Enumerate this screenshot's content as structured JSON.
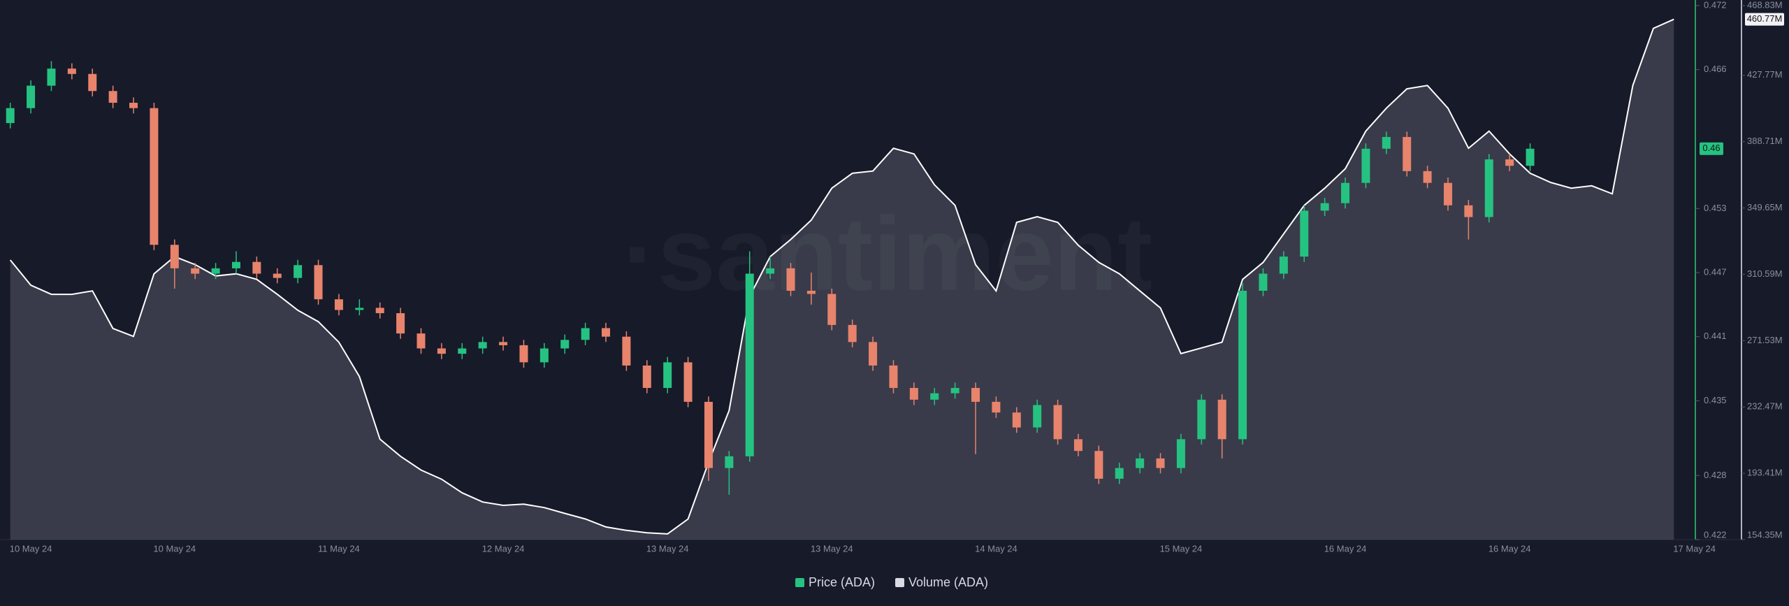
{
  "chart_data": {
    "type": "candlestick",
    "watermark": "·santiment",
    "categories": [
      null,
      "10 May 24",
      null,
      null,
      null,
      null,
      null,
      null,
      "10 May 24",
      null,
      null,
      null,
      null,
      null,
      null,
      null,
      "11 May 24",
      null,
      null,
      null,
      null,
      null,
      null,
      null,
      "12 May 24",
      null,
      null,
      null,
      null,
      null,
      null,
      null,
      "13 May 24",
      null,
      null,
      null,
      null,
      null,
      null,
      null,
      "13 May 24",
      null,
      null,
      null,
      null,
      null,
      null,
      null,
      "14 May 24",
      null,
      null,
      null,
      null,
      null,
      null,
      null,
      null,
      "15 May 24",
      null,
      null,
      null,
      null,
      null,
      null,
      null,
      "16 May 24",
      null,
      null,
      null,
      null,
      null,
      null,
      null,
      "16 May 24",
      null,
      null,
      null,
      null,
      null,
      null,
      null,
      null,
      "17 May 24"
    ],
    "series": [
      {
        "name": "Price (ADA)",
        "type": "candlestick",
        "color": "#26c281",
        "color_down": "#e8836c",
        "open": [
          0.461,
          0.4624,
          0.4645,
          0.4661,
          0.4656,
          0.464,
          0.4629,
          0.4624,
          0.4496,
          0.4474,
          0.4469,
          0.4474,
          0.448,
          0.4469,
          0.4465,
          0.4477,
          0.4445,
          0.4435,
          0.4437,
          0.4432,
          0.4413,
          0.4399,
          0.4394,
          0.4399,
          0.4405,
          0.4402,
          0.4386,
          0.4399,
          0.4407,
          0.4418,
          0.441,
          0.4383,
          0.4362,
          0.4386,
          0.4349,
          0.4287,
          0.4298,
          0.4469,
          0.4474,
          0.4453,
          0.445,
          0.4421,
          0.4405,
          0.4383,
          0.4362,
          0.4351,
          0.4357,
          0.4362,
          0.4349,
          0.4339,
          0.4325,
          0.4346,
          0.4314,
          0.4303,
          0.4277,
          0.4287,
          0.4296,
          0.4287,
          0.4314,
          0.4351,
          0.4314,
          0.4453,
          0.4469,
          0.4485,
          0.4528,
          0.4535,
          0.4554,
          0.4586,
          0.4597,
          0.4565,
          0.4554,
          0.4533,
          0.4522,
          0.4576,
          0.457,
          null,
          null,
          null,
          null,
          null,
          null,
          null,
          null
        ],
        "high": [
          0.4629,
          0.465,
          0.4668,
          0.4666,
          0.4661,
          0.4645,
          0.4634,
          0.4629,
          0.4501,
          0.4479,
          0.4479,
          0.449,
          0.4485,
          0.4474,
          0.4482,
          0.4482,
          0.445,
          0.4445,
          0.4442,
          0.4437,
          0.4418,
          0.4404,
          0.4404,
          0.441,
          0.441,
          0.4407,
          0.4404,
          0.4412,
          0.4423,
          0.4423,
          0.4415,
          0.4388,
          0.4391,
          0.4391,
          0.4354,
          0.4303,
          0.449,
          0.4485,
          0.4479,
          0.447,
          0.4455,
          0.4426,
          0.441,
          0.4388,
          0.4367,
          0.4362,
          0.4367,
          0.4367,
          0.4354,
          0.4344,
          0.4351,
          0.4351,
          0.4319,
          0.4308,
          0.4292,
          0.4301,
          0.4301,
          0.4319,
          0.4356,
          0.4356,
          0.446,
          0.4474,
          0.449,
          0.4533,
          0.454,
          0.4559,
          0.4591,
          0.4602,
          0.4602,
          0.457,
          0.4559,
          0.4538,
          0.4581,
          0.4581,
          0.4591,
          null,
          null,
          null,
          null,
          null,
          null,
          null,
          null
        ],
        "low": [
          0.4605,
          0.4619,
          0.464,
          0.4651,
          0.4635,
          0.4624,
          0.4619,
          0.4491,
          0.4455,
          0.4464,
          0.4464,
          0.4469,
          0.4464,
          0.446,
          0.446,
          0.444,
          0.443,
          0.443,
          0.4427,
          0.4408,
          0.4394,
          0.4389,
          0.4389,
          0.4394,
          0.4397,
          0.4381,
          0.4381,
          0.4394,
          0.4402,
          0.4405,
          0.4378,
          0.4357,
          0.4357,
          0.4344,
          0.4275,
          0.4262,
          0.4293,
          0.4464,
          0.4448,
          0.444,
          0.4416,
          0.44,
          0.4378,
          0.4357,
          0.4346,
          0.4346,
          0.4352,
          0.43,
          0.4334,
          0.432,
          0.432,
          0.4309,
          0.4298,
          0.4272,
          0.4272,
          0.4282,
          0.4282,
          0.4282,
          0.4309,
          0.4296,
          0.4309,
          0.4448,
          0.4464,
          0.448,
          0.4523,
          0.453,
          0.4549,
          0.4581,
          0.456,
          0.4549,
          0.4528,
          0.4501,
          0.4517,
          0.4565,
          0.4565,
          null,
          null,
          null,
          null,
          null,
          null,
          null,
          null
        ],
        "close": [
          0.4624,
          0.4645,
          0.4661,
          0.4656,
          0.464,
          0.4629,
          0.4624,
          0.4496,
          0.4474,
          0.4469,
          0.4474,
          0.448,
          0.4469,
          0.4465,
          0.4477,
          0.4445,
          0.4435,
          0.4437,
          0.4432,
          0.4413,
          0.4399,
          0.4394,
          0.4399,
          0.4405,
          0.4402,
          0.4386,
          0.4399,
          0.4407,
          0.4418,
          0.441,
          0.4383,
          0.4362,
          0.4386,
          0.4349,
          0.4287,
          0.4298,
          0.4469,
          0.4474,
          0.4453,
          0.445,
          0.4421,
          0.4405,
          0.4383,
          0.4362,
          0.4351,
          0.4357,
          0.4362,
          0.4349,
          0.4339,
          0.4325,
          0.4346,
          0.4314,
          0.4303,
          0.4277,
          0.4287,
          0.4296,
          0.4287,
          0.4314,
          0.4351,
          0.4314,
          0.4453,
          0.4469,
          0.4485,
          0.4528,
          0.4535,
          0.4554,
          0.4586,
          0.4597,
          0.4565,
          0.4554,
          0.4533,
          0.4522,
          0.4576,
          0.457,
          0.4586,
          null,
          null,
          null,
          null,
          null,
          null,
          null,
          null
        ],
        "last": {
          "value": 0.4586,
          "label": "0.46"
        }
      },
      {
        "name": "Volume (ADA)",
        "type": "area",
        "axis": "y2",
        "color": "#ffffff",
        "legend_color": "#d9dae3",
        "values": [
          318980000,
          304200000,
          298800000,
          298800000,
          300800000,
          278700000,
          274000000,
          310900000,
          321000000,
          316300000,
          309600000,
          310900000,
          307600000,
          298800000,
          289400000,
          282700000,
          270600000,
          250400000,
          213500000,
          203400000,
          195300000,
          189900000,
          181900000,
          176500000,
          174500000,
          175200000,
          173200000,
          169800000,
          166500000,
          161800000,
          159800000,
          158400000,
          157700000,
          166500000,
          200000000,
          230300000,
          297500000,
          321000000,
          331100000,
          342500000,
          361300000,
          370100000,
          371400000,
          384800000,
          381500000,
          363300000,
          351200000,
          316300000,
          300800000,
          341200000,
          344500000,
          341200000,
          327700000,
          317600000,
          310900000,
          300800000,
          290800000,
          263900000,
          267200000,
          270600000,
          307600000,
          317600000,
          334400000,
          351200000,
          361300000,
          372700000,
          394900000,
          408400000,
          419800000,
          421800000,
          408400000,
          384800000,
          394900000,
          381500000,
          370100000,
          364700000,
          361300000,
          362700000,
          358000000,
          421800000,
          455400000,
          460770000,
          null
        ],
        "last": {
          "value": 460770000,
          "label": "460.77M"
        }
      }
    ],
    "ylim": [
      0.422,
      0.472
    ],
    "yticks": [
      0.472,
      0.466,
      0.453,
      0.447,
      0.441,
      0.435,
      0.428,
      0.422
    ],
    "y2lim": [
      154350000,
      468830000
    ],
    "y2ticks": [
      {
        "value": 468830000,
        "label": "468.83M"
      },
      {
        "value": 427770000,
        "label": "427.77M"
      },
      {
        "value": 388710000,
        "label": "388.71M"
      },
      {
        "value": 349650000,
        "label": "349.65M"
      },
      {
        "value": 310590000,
        "label": "310.59M"
      },
      {
        "value": 271530000,
        "label": "271.53M"
      },
      {
        "value": 232470000,
        "label": "232.47M"
      },
      {
        "value": 193410000,
        "label": "193.41M"
      },
      {
        "value": 154350000,
        "label": "154.35M"
      }
    ]
  }
}
